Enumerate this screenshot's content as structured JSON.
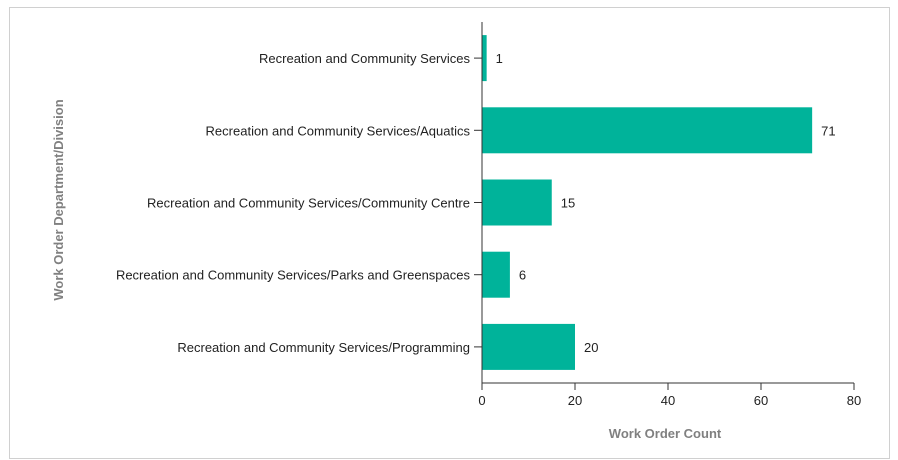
{
  "chart_data": {
    "type": "bar",
    "orientation": "horizontal",
    "categories": [
      "Recreation and Community Services",
      "Recreation and Community Services/Aquatics",
      "Recreation and Community Services/Community Centre",
      "Recreation and Community Services/Parks and Greenspaces",
      "Recreation and Community Services/Programming"
    ],
    "values": [
      1,
      71,
      15,
      6,
      20
    ],
    "xlabel": "Work Order Count",
    "ylabel": "Work Order Department/Division",
    "xlim": [
      0,
      80
    ],
    "xticks": [
      0,
      20,
      40,
      60,
      80
    ],
    "bar_color": "#00b39a",
    "grid": false,
    "legend": "none"
  }
}
